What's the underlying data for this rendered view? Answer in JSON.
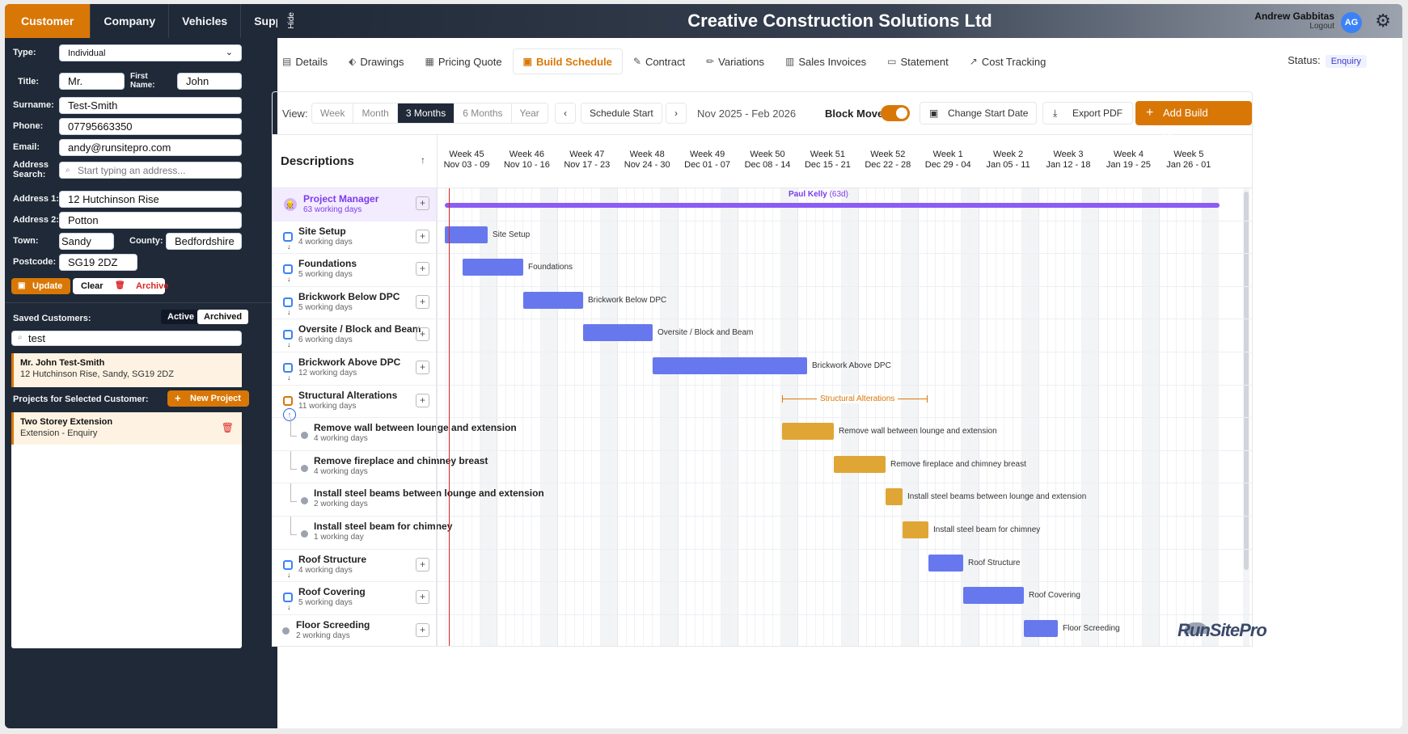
{
  "sidebar": {
    "tabs": [
      "Customer",
      "Company",
      "Vehicles",
      "Suppliers"
    ],
    "hide_label": "Hide",
    "type_label": "Type:",
    "type_value": "Individual",
    "title_label": "Title:",
    "title_value": "Mr.",
    "first_name_label": "First Name:",
    "first_name_value": "John",
    "surname_label": "Surname:",
    "surname_value": "Test-Smith",
    "phone_label": "Phone:",
    "phone_value": "07795663350",
    "email_label": "Email:",
    "email_value": "andy@runsitepro.com",
    "address_search_label": "Address Search:",
    "address_search_placeholder": "Start typing an address...",
    "address1_label": "Address 1:",
    "address1_value": "12 Hutchinson Rise",
    "address2_label": "Address 2:",
    "address2_value": "Potton",
    "town_label": "Town:",
    "town_value": "Sandy",
    "county_label": "County:",
    "county_value": "Bedfordshire",
    "postcode_label": "Postcode:",
    "postcode_value": "SG19 2DZ",
    "update_label": "Update",
    "clear_label": "Clear",
    "archive_label": "Archive",
    "saved_label": "Saved Customers:",
    "active_label": "Active",
    "archived_label": "Archived",
    "search_value": "test",
    "customer_name": "Mr. John Test-Smith",
    "customer_address": "12 Hutchinson Rise, Sandy, SG19 2DZ",
    "projects_label": "Projects for Selected Customer:",
    "new_project_label": "New Project",
    "project_name": "Two Storey Extension",
    "project_sub": "Extension - Enquiry"
  },
  "header": {
    "title": "Creative Construction Solutions Ltd",
    "user_name": "Andrew Gabbitas",
    "logout": "Logout",
    "avatar": "AG"
  },
  "nav": {
    "tabs": [
      "Details",
      "Drawings",
      "Pricing Quote",
      "Build Schedule",
      "Contract",
      "Variations",
      "Sales Invoices",
      "Statement",
      "Cost Tracking"
    ],
    "active": "Build Schedule",
    "status_label": "Status:",
    "status_value": "Enquiry"
  },
  "toolbar": {
    "view_label": "View:",
    "views": [
      "Week",
      "Month",
      "3 Months",
      "6 Months",
      "Year"
    ],
    "active_view": "3 Months",
    "schedule_start": "Schedule Start",
    "date_range": "Nov 2025 - Feb 2026",
    "block_move": "Block Move",
    "block_move_on": true,
    "change_start": "Change Start Date",
    "export_pdf": "Export PDF",
    "add_phase": "Add Build Phase"
  },
  "gantt": {
    "descriptions_label": "Descriptions",
    "weeks": [
      {
        "w": "Week 45",
        "d": "Nov 03 - 09"
      },
      {
        "w": "Week 46",
        "d": "Nov 10 - 16"
      },
      {
        "w": "Week 47",
        "d": "Nov 17 - 23"
      },
      {
        "w": "Week 48",
        "d": "Nov 24 - 30"
      },
      {
        "w": "Week 49",
        "d": "Dec 01 - 07"
      },
      {
        "w": "Week 50",
        "d": "Dec 08 - 14"
      },
      {
        "w": "Week 51",
        "d": "Dec 15 - 21"
      },
      {
        "w": "Week 52",
        "d": "Dec 22 - 28"
      },
      {
        "w": "Week 1",
        "d": "Dec 29 - 04"
      },
      {
        "w": "Week 2",
        "d": "Jan 05 - 11"
      },
      {
        "w": "Week 3",
        "d": "Jan 12 - 18"
      },
      {
        "w": "Week 4",
        "d": "Jan 19 - 25"
      },
      {
        "w": "Week 5",
        "d": "Jan 26 - 01"
      }
    ],
    "manager": {
      "name": "Project Manager",
      "sub": "63 working days",
      "person": "Paul Kelly",
      "days": "(63d)"
    },
    "rows": [
      {
        "name": "Site Setup",
        "sub": "4 working days",
        "label": "Site Setup"
      },
      {
        "name": "Foundations",
        "sub": "5 working days",
        "label": "Foundations"
      },
      {
        "name": "Brickwork Below DPC",
        "sub": "5 working days",
        "label": "Brickwork Below DPC"
      },
      {
        "name": "Oversite / Block and Beam",
        "sub": "6 working days",
        "label": "Oversite / Block and Beam"
      },
      {
        "name": "Brickwork Above DPC",
        "sub": "12 working days",
        "label": "Brickwork Above DPC"
      },
      {
        "name": "Structural Alterations",
        "sub": "11 working days",
        "label": "Structural Alterations"
      },
      {
        "name": "Remove wall between lounge and extension",
        "sub": "4 working days",
        "label": "Remove wall between lounge and extension"
      },
      {
        "name": "Remove fireplace and chimney breast",
        "sub": "4 working days",
        "label": "Remove fireplace and chimney breast"
      },
      {
        "name": "Install steel beams between lounge and extension",
        "sub": "2 working days",
        "label": "Install steel beams between lounge and extension"
      },
      {
        "name": "Install steel beam for chimney",
        "sub": "1 working day",
        "label": "Install steel beam for chimney"
      },
      {
        "name": "Roof Structure",
        "sub": "4 working days",
        "label": "Roof Structure"
      },
      {
        "name": "Roof Covering",
        "sub": "5 working days",
        "label": "Roof Covering"
      },
      {
        "name": "Floor Screeding",
        "sub": "2 working days",
        "label": "Floor Screeding"
      }
    ]
  },
  "logo_text": "RunSitePro",
  "colors": {
    "accent": "#d97706",
    "bar_blue": "#6778ee",
    "bar_amber": "#dfa635",
    "manager_purple": "#8b5cf6",
    "today_line": "#dc2626"
  }
}
